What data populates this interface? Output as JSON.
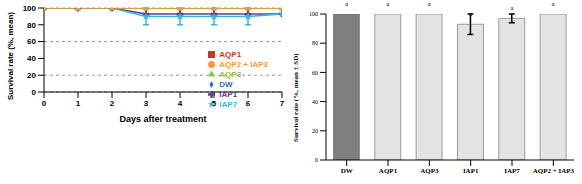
{
  "chart_data": [
    {
      "type": "line",
      "x_label": "Days after treatment",
      "y_label": "Survival rate (%, mean)",
      "x": [
        0,
        1,
        2,
        3,
        4,
        5,
        6,
        7
      ],
      "xlim": [
        0,
        7
      ],
      "xticks": [
        0,
        1,
        2,
        3,
        4,
        5,
        6,
        7
      ],
      "ylim": [
        0,
        100
      ],
      "yticks": [
        0,
        20,
        40,
        60,
        80,
        100
      ],
      "grid": true,
      "legend": "right",
      "series": [
        {
          "name": "DW",
          "color": "#2e75b6",
          "marker": "diamond",
          "values": [
            100,
            100,
            100,
            100,
            100,
            100,
            100,
            100
          ],
          "errors": [
            0,
            0,
            0,
            0,
            0,
            0,
            0,
            0
          ]
        },
        {
          "name": "AQP1",
          "color": "#c0392b",
          "marker": "square",
          "values": [
            100,
            100,
            100,
            100,
            100,
            100,
            100,
            100
          ],
          "errors": [
            0,
            0,
            0,
            0,
            0,
            0,
            0,
            0
          ]
        },
        {
          "name": "AQP3",
          "color": "#8bc34a",
          "marker": "triangle",
          "values": [
            100,
            100,
            100,
            100,
            100,
            100,
            100,
            100
          ],
          "errors": [
            0,
            0,
            0,
            0,
            0,
            0,
            0,
            0
          ]
        },
        {
          "name": "IAP1",
          "color": "#5b3f8c",
          "marker": "cross",
          "values": [
            100,
            100,
            100,
            93,
            93,
            93,
            93,
            93
          ],
          "errors": [
            0,
            0,
            0,
            0,
            0,
            0,
            0,
            0
          ]
        },
        {
          "name": "IAP7",
          "color": "#35b8d6",
          "marker": "star",
          "values": [
            100,
            100,
            100,
            90,
            90,
            90,
            90,
            93
          ],
          "errors": [
            0,
            0,
            0,
            10,
            10,
            10,
            10,
            0
          ]
        },
        {
          "name": "AQP2 + IAP3",
          "color": "#f39c34",
          "marker": "circle",
          "values": [
            100,
            100,
            100,
            100,
            100,
            100,
            100,
            100
          ],
          "errors": [
            0,
            0,
            0,
            0,
            0,
            0,
            0,
            0
          ]
        }
      ]
    },
    {
      "type": "bar",
      "y_label": "Survival rate (%, mean ± SD)",
      "categories": [
        "DW",
        "AQP1",
        "AQP3",
        "IAP1",
        "IAP7",
        "AQP2 + IAP3"
      ],
      "values": [
        100,
        100,
        100,
        93,
        97,
        100
      ],
      "errors": [
        0,
        0,
        0,
        7,
        3,
        0
      ],
      "bar_labels": [
        "a",
        "a",
        "a",
        "a",
        "a",
        "a"
      ],
      "colors": [
        "#7f7f7f",
        "#e3e3e3",
        "#e3e3e3",
        "#e3e3e3",
        "#e3e3e3",
        "#e3e3e3"
      ],
      "ylim": [
        0,
        100
      ],
      "yticks": [
        0,
        20,
        40,
        60,
        80,
        100
      ]
    }
  ]
}
